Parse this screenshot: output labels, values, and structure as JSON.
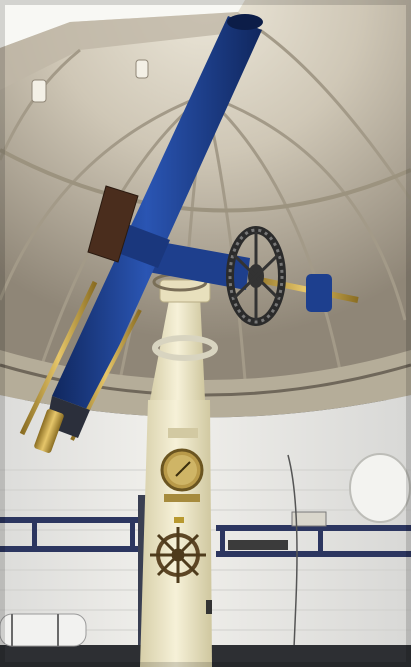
{
  "colors": {
    "dome_light": "#cfc7b6",
    "dome_shadow": "#8f8677",
    "rib": "#a79e8d",
    "wall": "#e8e7e3",
    "wall_shadow": "#cfd0cf",
    "telescope_blue": "#1d3f8e",
    "telescope_blue_dark": "#10275e",
    "pier_cream": "#efe9cc",
    "pier_shadow": "#d7cfa9",
    "brass": "#c2a247",
    "shelf": "#2c3660",
    "floor": "#2d2f33"
  },
  "icons": {
    "wheel": "helm-wheel-icon",
    "dial": "clock-dial-icon",
    "gear": "declination-gear-icon"
  }
}
